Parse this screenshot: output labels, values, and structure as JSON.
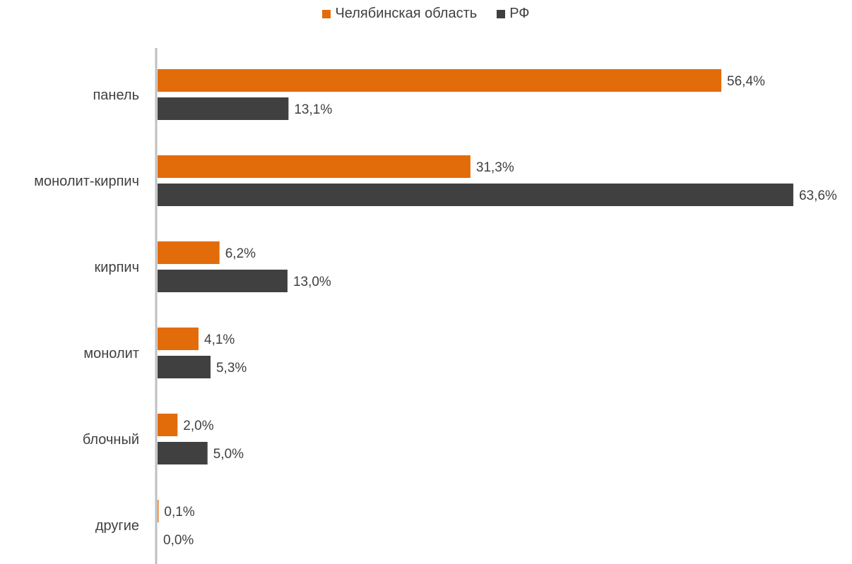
{
  "chart_data": {
    "type": "bar",
    "orientation": "horizontal",
    "categories": [
      "панель",
      "монолит-кирпич",
      "кирпич",
      "монолит",
      "блочный",
      "другие"
    ],
    "series": [
      {
        "name": "Челябинская область",
        "color": "#E36C0A",
        "values": [
          56.4,
          31.3,
          6.2,
          4.1,
          2.0,
          0.1
        ],
        "labels": [
          "56,4%",
          "31,3%",
          "6,2%",
          "4,1%",
          "2,0%",
          "0,1%"
        ]
      },
      {
        "name": "РФ",
        "color": "#404040",
        "values": [
          13.1,
          63.6,
          13.0,
          5.3,
          5.0,
          0.0
        ],
        "labels": [
          "13,1%",
          "63,6%",
          "13,0%",
          "5,3%",
          "5,0%",
          "0,0%"
        ]
      }
    ],
    "legend_position": "top-center",
    "grid": false,
    "xlim": [
      0,
      65
    ]
  }
}
